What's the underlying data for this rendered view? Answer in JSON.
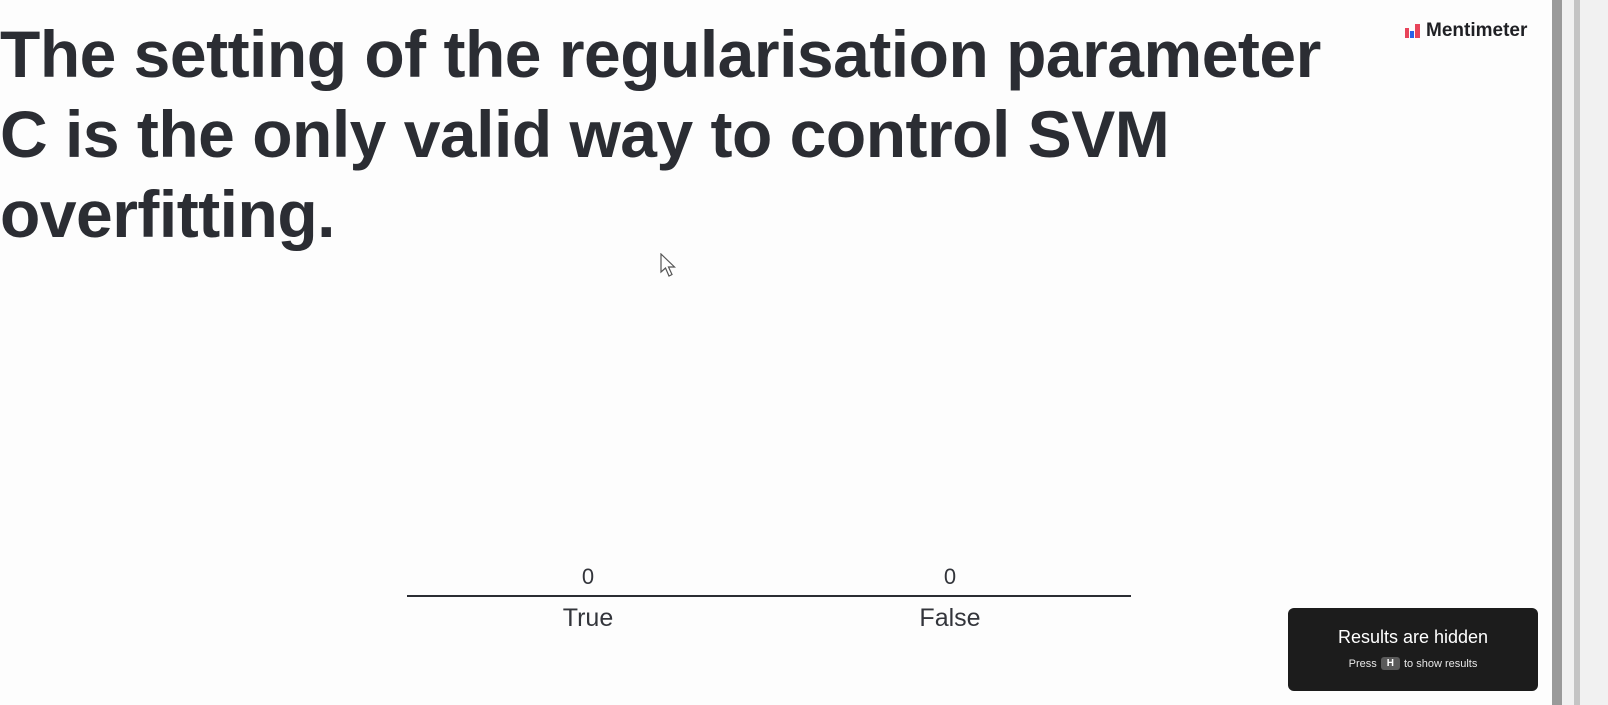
{
  "slide": {
    "question": "The setting of the regularisation parameter C is the only valid way to control SVM overfitting.",
    "brand_name": "Mentimeter",
    "brand_icon": "mentimeter-logo-icon",
    "cursor_icon": "mouse-pointer-icon"
  },
  "chart_data": {
    "type": "bar",
    "categories": [
      "True",
      "False"
    ],
    "values": [
      0,
      0
    ],
    "value_labels": [
      "0",
      "0"
    ],
    "ylim": [
      0,
      1
    ],
    "grid": false,
    "legend": "none"
  },
  "results_notice": {
    "title": "Results are hidden",
    "hint_prefix": "Press",
    "hint_key": "H",
    "hint_suffix": "to show results"
  },
  "colors": {
    "background": "#fdfdfd",
    "text": "#2b2d33",
    "panel": "#1c1c1c",
    "logo_red": "#e8445a",
    "logo_blue": "#2a62e8"
  }
}
